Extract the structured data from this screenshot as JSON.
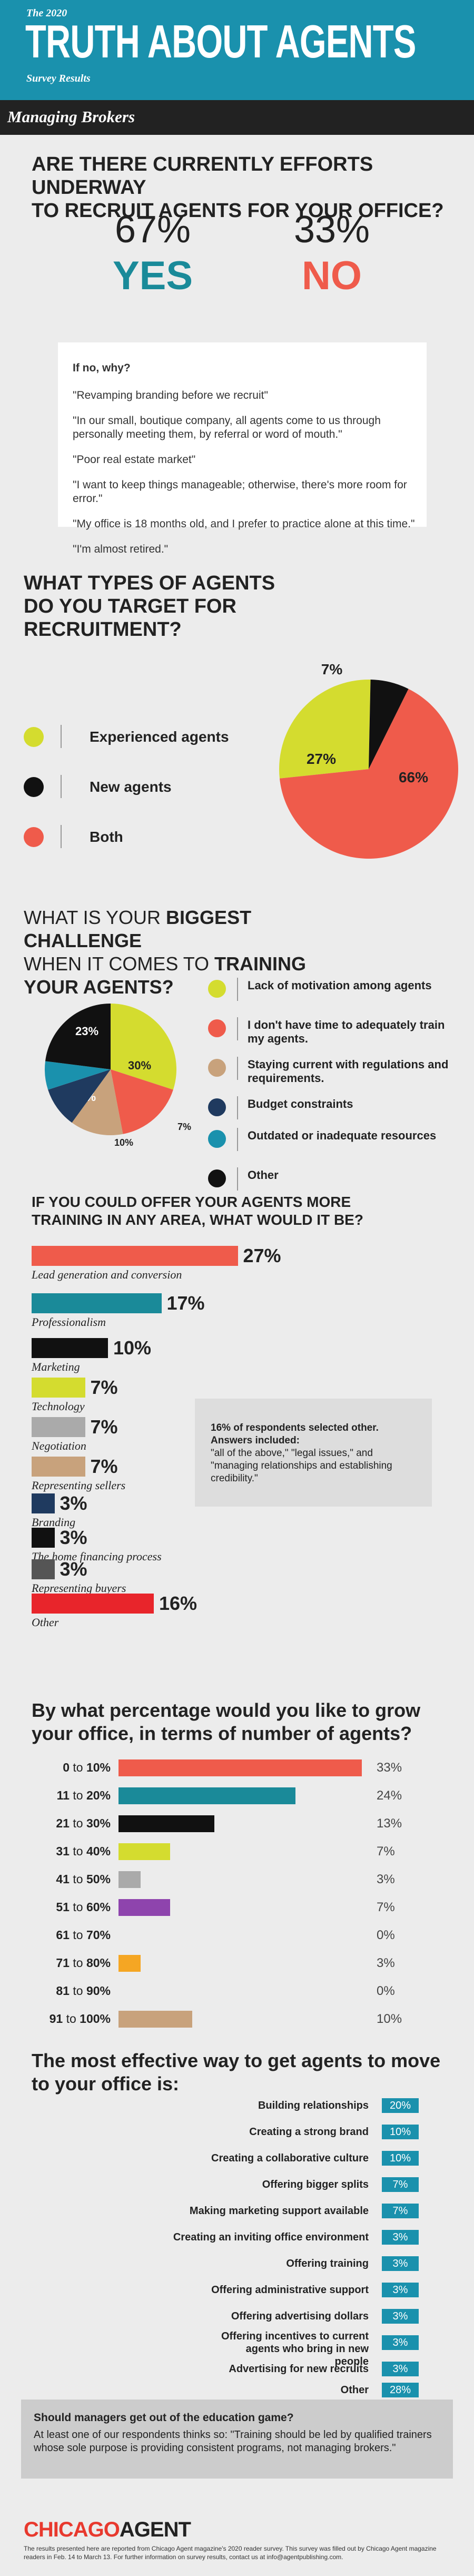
{
  "header": {
    "top": "The 2020",
    "title": "TRUTH ABOUT AGENTS",
    "subtitle": "Survey Results",
    "section": "Managing Brokers",
    "bg_color": "#1a91ad"
  },
  "recruit": {
    "question": "ARE THERE CURRENTLY EFFORTS  UNDERWAY TO RECRUIT AGENTS  FOR YOUR OFFICE?",
    "question_line1": "ARE THERE CURRENTLY EFFORTS  UNDERWAY",
    "question_line2": "TO RECRUIT AGENTS  FOR YOUR OFFICE?",
    "yes_pct": "67%",
    "yes_label": "YES",
    "no_pct": "33%",
    "no_label": "NO",
    "why_title": "If no, why?",
    "why_answers": [
      "\"Revamping branding before we recruit\"",
      "\"In our small, boutique company, all agents come to us through personally meeting them, by referral or word of mouth.\"",
      "\"Poor real estate market\"",
      "\"I want to keep things manageable; otherwise, there's more room for error.\"",
      "\"My office is 18 months old, and I prefer to practice alone at this time.\"",
      "\"I'm almost retired.\""
    ]
  },
  "target": {
    "question_line1": "WHAT TYPES OF AGENTS",
    "question_line2": "DO YOU TARGET FOR",
    "question_line3": "RECRUITMENT?",
    "legend": [
      "Experienced agents",
      "New agents",
      "Both"
    ]
  },
  "training": {
    "q_line1_pre": "WHAT IS YOUR ",
    "q_line1_bold": "BIGGEST CHALLENGE",
    "q_line2_pre": "WHEN IT COMES TO ",
    "q_line2_bold": "TRAINING",
    "q_line3_bold": "YOUR AGENTS?",
    "legend": [
      "Lack of motivation among agents",
      "I don't have time to adequately train my agents.",
      "Staying current with regulations and requirements.",
      "Budget constraints",
      "Outdated or inadequate resources",
      "Other"
    ]
  },
  "more_training": {
    "question_line1": "IF YOU COULD OFFER YOUR AGENTS MORE",
    "question_line2": "TRAINING IN ANY AREA, WHAT WOULD IT BE?",
    "note_bold": "16% of respondents selected other. Answers included:",
    "note_text": "\"all of the above,\" \"legal issues,\" and \"managing relationships and establishing credibility.\""
  },
  "grow": {
    "question_line1": "By what percentage would you like to grow",
    "question_line2": "your office, in terms of number of agents?"
  },
  "effective": {
    "question_line1": "The most effective way to get agents to move",
    "question_line2": "to your office is:",
    "items": [
      {
        "label": "Building relationships",
        "value": "20%"
      },
      {
        "label": "Creating a strong brand",
        "value": "10%"
      },
      {
        "label": "Creating a collaborative culture",
        "value": "10%"
      },
      {
        "label": "Offering bigger splits",
        "value": "7%"
      },
      {
        "label": "Making marketing support available",
        "value": "7%"
      },
      {
        "label": "Creating an inviting office environment",
        "value": "3%"
      },
      {
        "label": "Offering training",
        "value": "3%"
      },
      {
        "label": "Offering administrative support",
        "value": "3%"
      },
      {
        "label": "Offering advertising dollars",
        "value": "3%"
      },
      {
        "label": "Offering incentives to current agents who bring in new people",
        "value": "3%"
      },
      {
        "label": "Advertising for new recruits",
        "value": "3%"
      },
      {
        "label": "Other",
        "value": "28%"
      }
    ]
  },
  "education": {
    "title": "Should managers get out of the education game?",
    "text": "At least one of our respondents thinks so: \"Training should be led by qualified trainers whose sole purpose is providing consistent programs, not managing brokers.\""
  },
  "footer": {
    "logo_chicago": "CHICAGO",
    "logo_agent": "AGENT",
    "note": "The results presented here are reported from Chicago Agent  magazine's 2020 reader survey. This survey was filled out by Chicago Agent magazine readers in Feb. 14 to March 13. For further information on survey results, contact us at info@agentpublishing.com."
  },
  "chart_data": [
    {
      "type": "pie",
      "title": "WHAT TYPES OF AGENTS DO YOU TARGET FOR RECRUITMENT?",
      "categories": [
        "Experienced agents",
        "New agents",
        "Both"
      ],
      "values": [
        27,
        7,
        66
      ],
      "labels": [
        "27%",
        "7%",
        "66%"
      ],
      "colors": [
        "#d4dc2f",
        "#111111",
        "#ef5b4b"
      ]
    },
    {
      "type": "pie",
      "title": "WHAT IS YOUR BIGGEST CHALLENGE WHEN IT COMES TO TRAINING YOUR AGENTS?",
      "categories": [
        "Lack of motivation among agents",
        "I don't have time to adequately train my agents.",
        "Staying current with regulations and requirements.",
        "Budget constraints",
        "Outdated or inadequate resources",
        "Other"
      ],
      "values": [
        30,
        17,
        13,
        10,
        7,
        23
      ],
      "labels": [
        "30%",
        "17%",
        "13%",
        "10%",
        "7%",
        "23%"
      ],
      "colors": [
        "#d4dc2f",
        "#ef5b4b",
        "#c8a27c",
        "#1f3a5f",
        "#1a91ad",
        "#111111"
      ]
    },
    {
      "type": "bar",
      "orientation": "horizontal",
      "title": "IF YOU COULD OFFER YOUR AGENTS MORE TRAINING IN ANY AREA, WHAT WOULD IT BE?",
      "categories": [
        "Lead generation and conversion",
        "Professionalism",
        "Marketing",
        "Technology",
        "Negotiation",
        "Representing sellers",
        "Branding",
        "The home financing process",
        "Representing buyers",
        "Other"
      ],
      "values": [
        27,
        17,
        10,
        7,
        7,
        7,
        3,
        3,
        3,
        16
      ],
      "labels": [
        "27%",
        "17%",
        "10%",
        "7%",
        "7%",
        "7%",
        "3%",
        "3%",
        "3%",
        "16%"
      ],
      "colors": [
        "#ef5b4b",
        "#1a8a99",
        "#111111",
        "#d4dc2f",
        "#aaaaaa",
        "#c8a27c",
        "#1f3a5f",
        "#111111",
        "#555555",
        "#e8252b"
      ]
    },
    {
      "type": "bar",
      "orientation": "horizontal",
      "title": "By what percentage would you like to grow your office, in terms of number of agents?",
      "categories": [
        "0 to 10%",
        "11 to 20%",
        "21 to 30%",
        "31 to 40%",
        "41 to 50%",
        "51 to 60%",
        "61 to 70%",
        "71 to 80%",
        "81 to 90%",
        "91 to 100%"
      ],
      "cat_left": [
        "0",
        "11",
        "21",
        "31",
        "41",
        "51",
        "61",
        "71",
        "81",
        "91"
      ],
      "cat_right": [
        "10%",
        "20%",
        "30%",
        "40%",
        "50%",
        "60%",
        "70%",
        "80%",
        "90%",
        "100%"
      ],
      "values": [
        33,
        24,
        13,
        7,
        3,
        7,
        0,
        3,
        0,
        10
      ],
      "labels": [
        "33%",
        "24%",
        "13%",
        "7%",
        "3%",
        "7%",
        "0%",
        "3%",
        "0%",
        "10%"
      ],
      "colors": [
        "#ef5b4b",
        "#1a8a99",
        "#111111",
        "#d4dc2f",
        "#aaaaaa",
        "#8e44ad",
        "#cccccc",
        "#f5a623",
        "#cccccc",
        "#c8a27c"
      ]
    }
  ]
}
